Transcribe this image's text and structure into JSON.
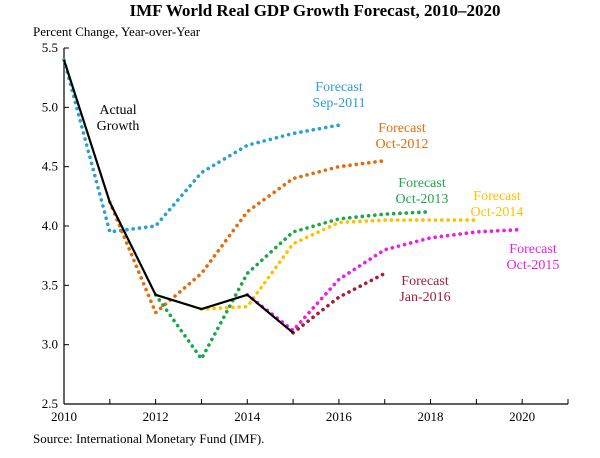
{
  "chart_data": {
    "type": "line",
    "title": "IMF World Real GDP Growth Forecast, 2010–2020",
    "ylabel": "Percent Change, Year-over-Year",
    "xlabel": "",
    "source": "Source: International Monetary Fund (IMF).",
    "xlim": [
      2010,
      2021
    ],
    "ylim": [
      2.5,
      5.5
    ],
    "xticks": [
      "2010",
      "2012",
      "2014",
      "2016",
      "2018",
      "2020"
    ],
    "yticks": [
      "2.5",
      "3.0",
      "3.5",
      "4.0",
      "4.5",
      "5.0",
      "5.5"
    ],
    "grid": false,
    "series": [
      {
        "name": "Actual Growth",
        "label_lines": [
          "Actual",
          "Growth"
        ],
        "color": "#000000",
        "style": "solid",
        "x": [
          2010,
          2011,
          2012,
          2013,
          2014,
          2015
        ],
        "y": [
          5.4,
          4.2,
          3.42,
          3.3,
          3.42,
          3.1
        ]
      },
      {
        "name": "Forecast Sep-2011",
        "label_lines": [
          "Forecast",
          "Sep-2011"
        ],
        "color": "#2a9fd6",
        "style": "dotted",
        "x": [
          2010,
          2011,
          2012,
          2013,
          2014,
          2015,
          2016
        ],
        "y": [
          5.4,
          3.95,
          4.0,
          4.45,
          4.68,
          4.78,
          4.85
        ]
      },
      {
        "name": "Forecast Oct-2012",
        "label_lines": [
          "Forecast",
          "Oct-2012"
        ],
        "color": "#e36c0a",
        "style": "dotted",
        "x": [
          2011,
          2012,
          2013,
          2014,
          2015,
          2016,
          2017
        ],
        "y": [
          4.2,
          3.27,
          3.6,
          4.12,
          4.4,
          4.5,
          4.55
        ]
      },
      {
        "name": "Forecast Oct-2013",
        "label_lines": [
          "Forecast",
          "Oct-2013"
        ],
        "color": "#1ba84a",
        "style": "dotted",
        "x": [
          2012,
          2013,
          2014,
          2015,
          2016,
          2017,
          2018
        ],
        "y": [
          3.42,
          2.88,
          3.6,
          3.95,
          4.06,
          4.1,
          4.12
        ]
      },
      {
        "name": "Forecast Oct-2014",
        "label_lines": [
          "Forecast",
          "Oct-2014"
        ],
        "color": "#ffc000",
        "style": "dotted",
        "x": [
          2013,
          2014,
          2015,
          2016,
          2017,
          2018,
          2019
        ],
        "y": [
          3.3,
          3.32,
          3.85,
          4.03,
          4.05,
          4.05,
          4.05
        ]
      },
      {
        "name": "Forecast Oct-2015",
        "label_lines": [
          "Forecast",
          "Oct-2015"
        ],
        "color": "#e81ee8",
        "style": "dotted",
        "x": [
          2014,
          2015,
          2016,
          2017,
          2018,
          2019,
          2020
        ],
        "y": [
          3.42,
          3.12,
          3.55,
          3.8,
          3.9,
          3.95,
          3.97
        ]
      },
      {
        "name": "Forecast Jan-2016",
        "label_lines": [
          "Forecast",
          "Jan-2016"
        ],
        "color": "#a0203a",
        "style": "dotted",
        "x": [
          2015,
          2016,
          2017
        ],
        "y": [
          3.1,
          3.4,
          3.6
        ]
      }
    ]
  }
}
